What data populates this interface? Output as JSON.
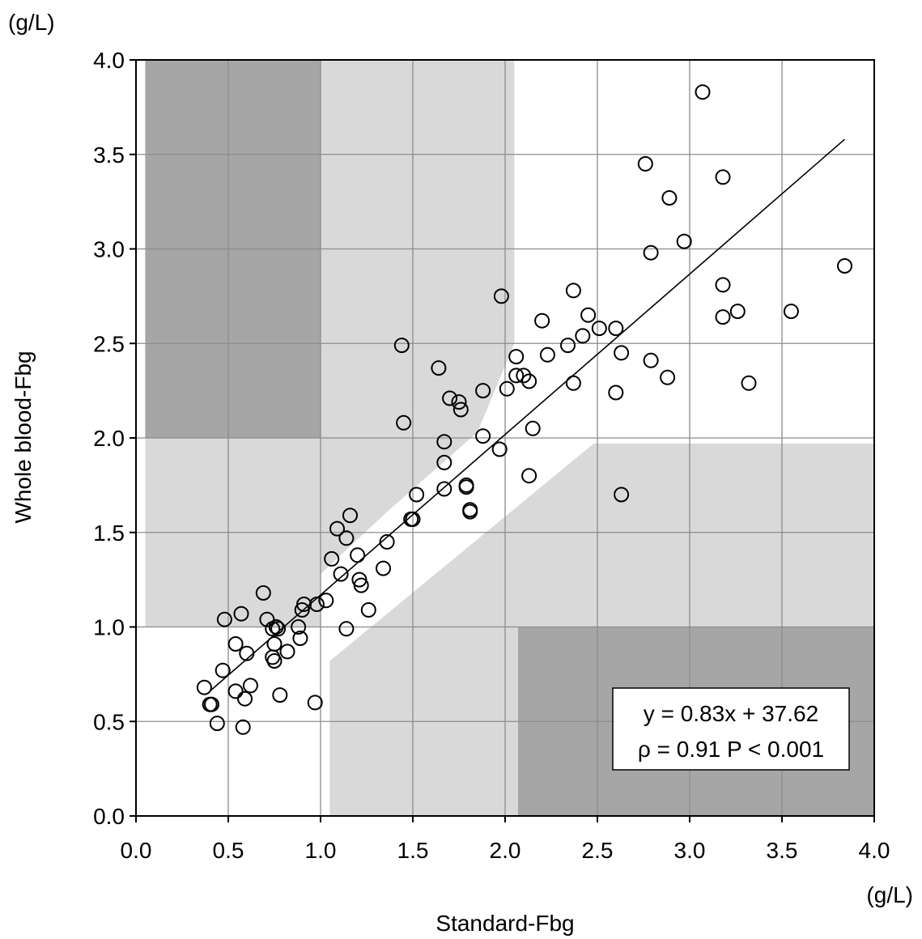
{
  "chart_data": {
    "type": "scatter",
    "title": "",
    "xlabel": "Standard-Fbg",
    "ylabel": "Whole blood-Fbg",
    "x_unit": "(g/L)",
    "y_unit": "(g/L)",
    "xlim": [
      0,
      4
    ],
    "ylim": [
      0,
      4
    ],
    "x_ticks": [
      "0.0",
      "0.5",
      "1.0",
      "1.5",
      "2.0",
      "2.5",
      "3.0",
      "3.5",
      "4.0"
    ],
    "y_ticks": [
      "0.0",
      "0.5",
      "1.0",
      "1.5",
      "2.0",
      "2.5",
      "3.0",
      "3.5",
      "4.0"
    ],
    "grid": true,
    "regression": {
      "slope": 0.83,
      "intercept_label": "37.62",
      "x_range": [
        0.4,
        3.84
      ],
      "y_range": [
        0.66,
        3.58
      ]
    },
    "annotation": {
      "line1": "y = 0.83x + 37.62",
      "line2": "ρ = 0.91  P < 0.001"
    },
    "zones": [
      {
        "shade": "dark",
        "color": "#a6a6a6",
        "points": [
          [
            0.05,
            2.0
          ],
          [
            1.0,
            2.0
          ],
          [
            1.0,
            4.0
          ],
          [
            0.05,
            4.0
          ]
        ]
      },
      {
        "shade": "dark",
        "color": "#a6a6a6",
        "points": [
          [
            2.07,
            0.0
          ],
          [
            4.0,
            0.0
          ],
          [
            4.0,
            1.0
          ],
          [
            2.07,
            1.0
          ]
        ]
      },
      {
        "shade": "light",
        "color": "#d9d9d9",
        "points": [
          [
            0.05,
            1.0
          ],
          [
            0.05,
            4.0
          ],
          [
            2.05,
            4.0
          ],
          [
            2.05,
            2.5
          ],
          [
            1.85,
            2.03
          ],
          [
            1.35,
            1.6
          ],
          [
            1.0,
            1.28
          ],
          [
            1.0,
            1.0
          ]
        ]
      },
      {
        "shade": "light",
        "color": "#d9d9d9",
        "points": [
          [
            1.05,
            0.0
          ],
          [
            4.0,
            0.0
          ],
          [
            4.0,
            1.97
          ],
          [
            2.48,
            1.97
          ],
          [
            1.05,
            0.82
          ]
        ]
      }
    ],
    "points": [
      [
        0.37,
        0.68
      ],
      [
        0.4,
        0.59
      ],
      [
        0.41,
        0.59
      ],
      [
        0.44,
        0.49
      ],
      [
        0.47,
        0.77
      ],
      [
        0.48,
        1.04
      ],
      [
        0.54,
        0.66
      ],
      [
        0.54,
        0.91
      ],
      [
        0.57,
        1.07
      ],
      [
        0.58,
        0.47
      ],
      [
        0.59,
        0.62
      ],
      [
        0.6,
        0.86
      ],
      [
        0.62,
        0.69
      ],
      [
        0.69,
        1.18
      ],
      [
        0.71,
        1.04
      ],
      [
        0.74,
        0.99
      ],
      [
        0.74,
        0.84
      ],
      [
        0.75,
        0.82
      ],
      [
        0.75,
        0.91
      ],
      [
        0.76,
        1.0
      ],
      [
        0.77,
        0.99
      ],
      [
        0.78,
        0.64
      ],
      [
        0.82,
        0.87
      ],
      [
        0.88,
        1.0
      ],
      [
        0.89,
        0.94
      ],
      [
        0.9,
        1.09
      ],
      [
        0.91,
        1.12
      ],
      [
        0.97,
        0.6
      ],
      [
        0.98,
        1.12
      ],
      [
        1.03,
        1.14
      ],
      [
        1.06,
        1.36
      ],
      [
        1.09,
        1.52
      ],
      [
        1.11,
        1.28
      ],
      [
        1.14,
        1.47
      ],
      [
        1.14,
        0.99
      ],
      [
        1.16,
        1.59
      ],
      [
        1.2,
        1.38
      ],
      [
        1.21,
        1.25
      ],
      [
        1.22,
        1.22
      ],
      [
        1.26,
        1.09
      ],
      [
        1.34,
        1.31
      ],
      [
        1.36,
        1.45
      ],
      [
        1.44,
        2.49
      ],
      [
        1.45,
        2.08
      ],
      [
        1.49,
        1.57
      ],
      [
        1.5,
        1.57
      ],
      [
        1.52,
        1.7
      ],
      [
        1.64,
        2.37
      ],
      [
        1.67,
        1.73
      ],
      [
        1.67,
        1.98
      ],
      [
        1.67,
        1.87
      ],
      [
        1.7,
        2.21
      ],
      [
        1.75,
        2.19
      ],
      [
        1.76,
        2.15
      ],
      [
        1.79,
        1.75
      ],
      [
        1.79,
        1.74
      ],
      [
        1.81,
        1.62
      ],
      [
        1.81,
        1.61
      ],
      [
        1.88,
        2.25
      ],
      [
        1.88,
        2.01
      ],
      [
        1.97,
        1.94
      ],
      [
        1.98,
        2.75
      ],
      [
        2.01,
        2.26
      ],
      [
        2.06,
        2.43
      ],
      [
        2.06,
        2.33
      ],
      [
        2.1,
        2.33
      ],
      [
        2.13,
        2.3
      ],
      [
        2.13,
        1.8
      ],
      [
        2.15,
        2.05
      ],
      [
        2.2,
        2.62
      ],
      [
        2.23,
        2.44
      ],
      [
        2.34,
        2.49
      ],
      [
        2.37,
        2.78
      ],
      [
        2.37,
        2.29
      ],
      [
        2.42,
        2.54
      ],
      [
        2.45,
        2.65
      ],
      [
        2.51,
        2.58
      ],
      [
        2.6,
        2.58
      ],
      [
        2.6,
        2.24
      ],
      [
        2.63,
        2.45
      ],
      [
        2.63,
        1.7
      ],
      [
        2.76,
        3.45
      ],
      [
        2.79,
        2.98
      ],
      [
        2.79,
        2.41
      ],
      [
        2.88,
        2.32
      ],
      [
        2.89,
        3.27
      ],
      [
        2.97,
        3.04
      ],
      [
        3.07,
        3.83
      ],
      [
        3.18,
        3.38
      ],
      [
        3.18,
        2.81
      ],
      [
        3.18,
        2.64
      ],
      [
        3.26,
        2.67
      ],
      [
        3.32,
        2.29
      ],
      [
        3.55,
        2.67
      ],
      [
        3.84,
        2.91
      ]
    ]
  }
}
